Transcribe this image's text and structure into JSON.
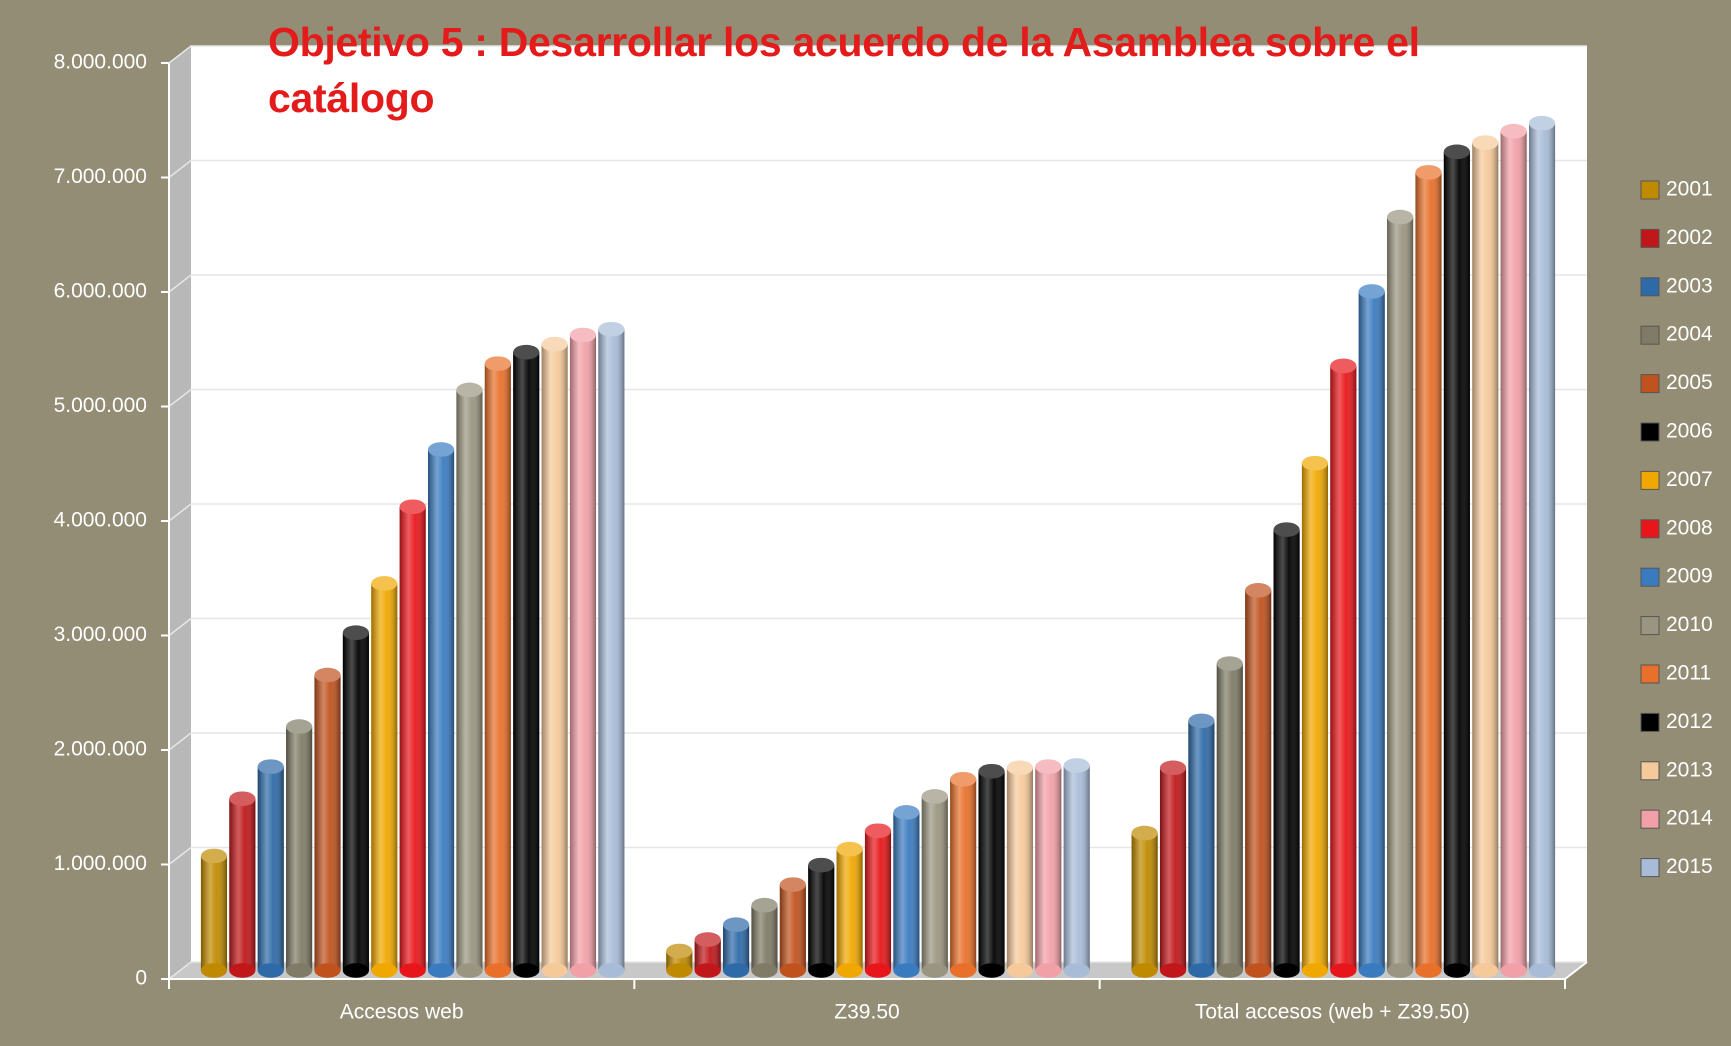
{
  "chart_data": {
    "type": "bar3d",
    "title": "Objetivo 5 : Desarrollar los acuerdo de la Asamblea sobre el catálogo",
    "categories": [
      "Accesos web",
      "Z39.50",
      "Total accesos (web + Z39.50)"
    ],
    "series": [
      {
        "name": "2001",
        "color": "#c08a00",
        "values": [
          1000000,
          170000,
          1200000
        ]
      },
      {
        "name": "2002",
        "color": "#c0171a",
        "values": [
          1500000,
          270000,
          1770000
        ]
      },
      {
        "name": "2003",
        "color": "#2e6aa8",
        "values": [
          1780000,
          400000,
          2180000
        ]
      },
      {
        "name": "2004",
        "color": "#7f7b66",
        "values": [
          2130000,
          570000,
          2680000
        ]
      },
      {
        "name": "2005",
        "color": "#c0521e",
        "values": [
          2580000,
          750000,
          3320000
        ]
      },
      {
        "name": "2006",
        "color": "#000000",
        "values": [
          2950000,
          920000,
          3850000
        ]
      },
      {
        "name": "2007",
        "color": "#f0a800",
        "values": [
          3380000,
          1060000,
          4430000
        ]
      },
      {
        "name": "2008",
        "color": "#e8161a",
        "values": [
          4050000,
          1220000,
          5280000
        ]
      },
      {
        "name": "2009",
        "color": "#3a7bc0",
        "values": [
          4550000,
          1380000,
          5930000
        ]
      },
      {
        "name": "2010",
        "color": "#9a9580",
        "values": [
          5070000,
          1520000,
          6580000
        ]
      },
      {
        "name": "2011",
        "color": "#e8702a",
        "values": [
          5300000,
          1670000,
          6970000
        ]
      },
      {
        "name": "2012",
        "color": "#000000",
        "values": [
          5400000,
          1740000,
          7150000
        ]
      },
      {
        "name": "2013",
        "color": "#f5c99a",
        "values": [
          5470000,
          1770000,
          7230000
        ]
      },
      {
        "name": "2014",
        "color": "#f2a0a8",
        "values": [
          5550000,
          1780000,
          7330000
        ]
      },
      {
        "name": "2015",
        "color": "#a8bcd8",
        "values": [
          5600000,
          1790000,
          7400000
        ]
      }
    ],
    "ylim": [
      0,
      8000000
    ],
    "yticks": [
      0,
      {
        "value": 1000000,
        "label": "1.000.000"
      },
      {
        "value": 2000000,
        "label": "2.000.000"
      },
      {
        "value": 3000000,
        "label": "3.000.000"
      },
      {
        "value": 4000000,
        "label": "4.000.000"
      },
      {
        "value": 5000000,
        "label": "5.000.000"
      },
      {
        "value": 6000000,
        "label": "6.000.000"
      },
      {
        "value": 7000000,
        "label": "7.000.000"
      },
      {
        "value": 8000000,
        "label": "8.000.000"
      }
    ],
    "grid": true,
    "legend": "right"
  }
}
